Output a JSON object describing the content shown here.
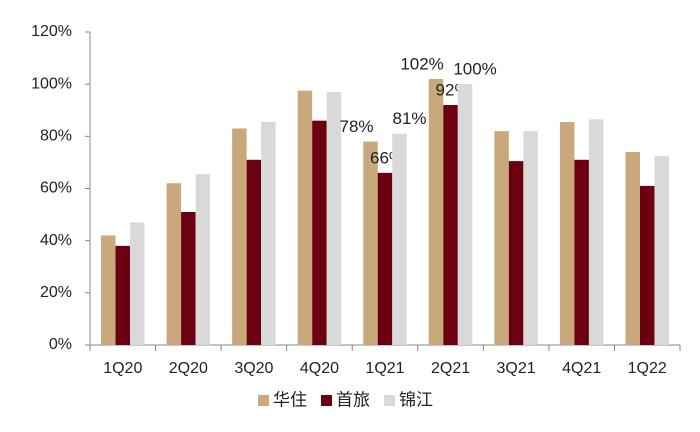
{
  "chart_data": {
    "type": "bar",
    "categories": [
      "1Q20",
      "2Q20",
      "3Q20",
      "4Q20",
      "1Q21",
      "2Q21",
      "3Q21",
      "4Q21",
      "1Q22"
    ],
    "series": [
      {
        "name": "华住",
        "color": "#c9a87c",
        "values": [
          42,
          62,
          83,
          97.5,
          78,
          102,
          82,
          85.5,
          74
        ],
        "value_labels": [
          null,
          null,
          null,
          null,
          "78%",
          "102%",
          null,
          null,
          null
        ]
      },
      {
        "name": "首旅",
        "color": "#6b0010",
        "values": [
          38,
          51,
          71,
          86,
          66,
          92,
          70.5,
          71,
          61
        ],
        "value_labels": [
          null,
          null,
          null,
          null,
          "66%",
          "92%",
          null,
          null,
          null
        ]
      },
      {
        "name": "锦江",
        "color": "#d9d9d9",
        "values": [
          47,
          65.5,
          85.5,
          97,
          81,
          100,
          82,
          86.5,
          72.5
        ],
        "value_labels": [
          null,
          null,
          null,
          null,
          "81%",
          "100%",
          null,
          null,
          null
        ]
      }
    ],
    "ylim": [
      0,
      120
    ],
    "yticks": [
      {
        "value": 0,
        "label": "0%"
      },
      {
        "value": 20,
        "label": "20%"
      },
      {
        "value": 40,
        "label": "40%"
      },
      {
        "value": 60,
        "label": "60%"
      },
      {
        "value": 80,
        "label": "80%"
      },
      {
        "value": 100,
        "label": "100%"
      },
      {
        "value": 120,
        "label": "120%"
      }
    ],
    "grid": false,
    "legend": "bottom"
  }
}
